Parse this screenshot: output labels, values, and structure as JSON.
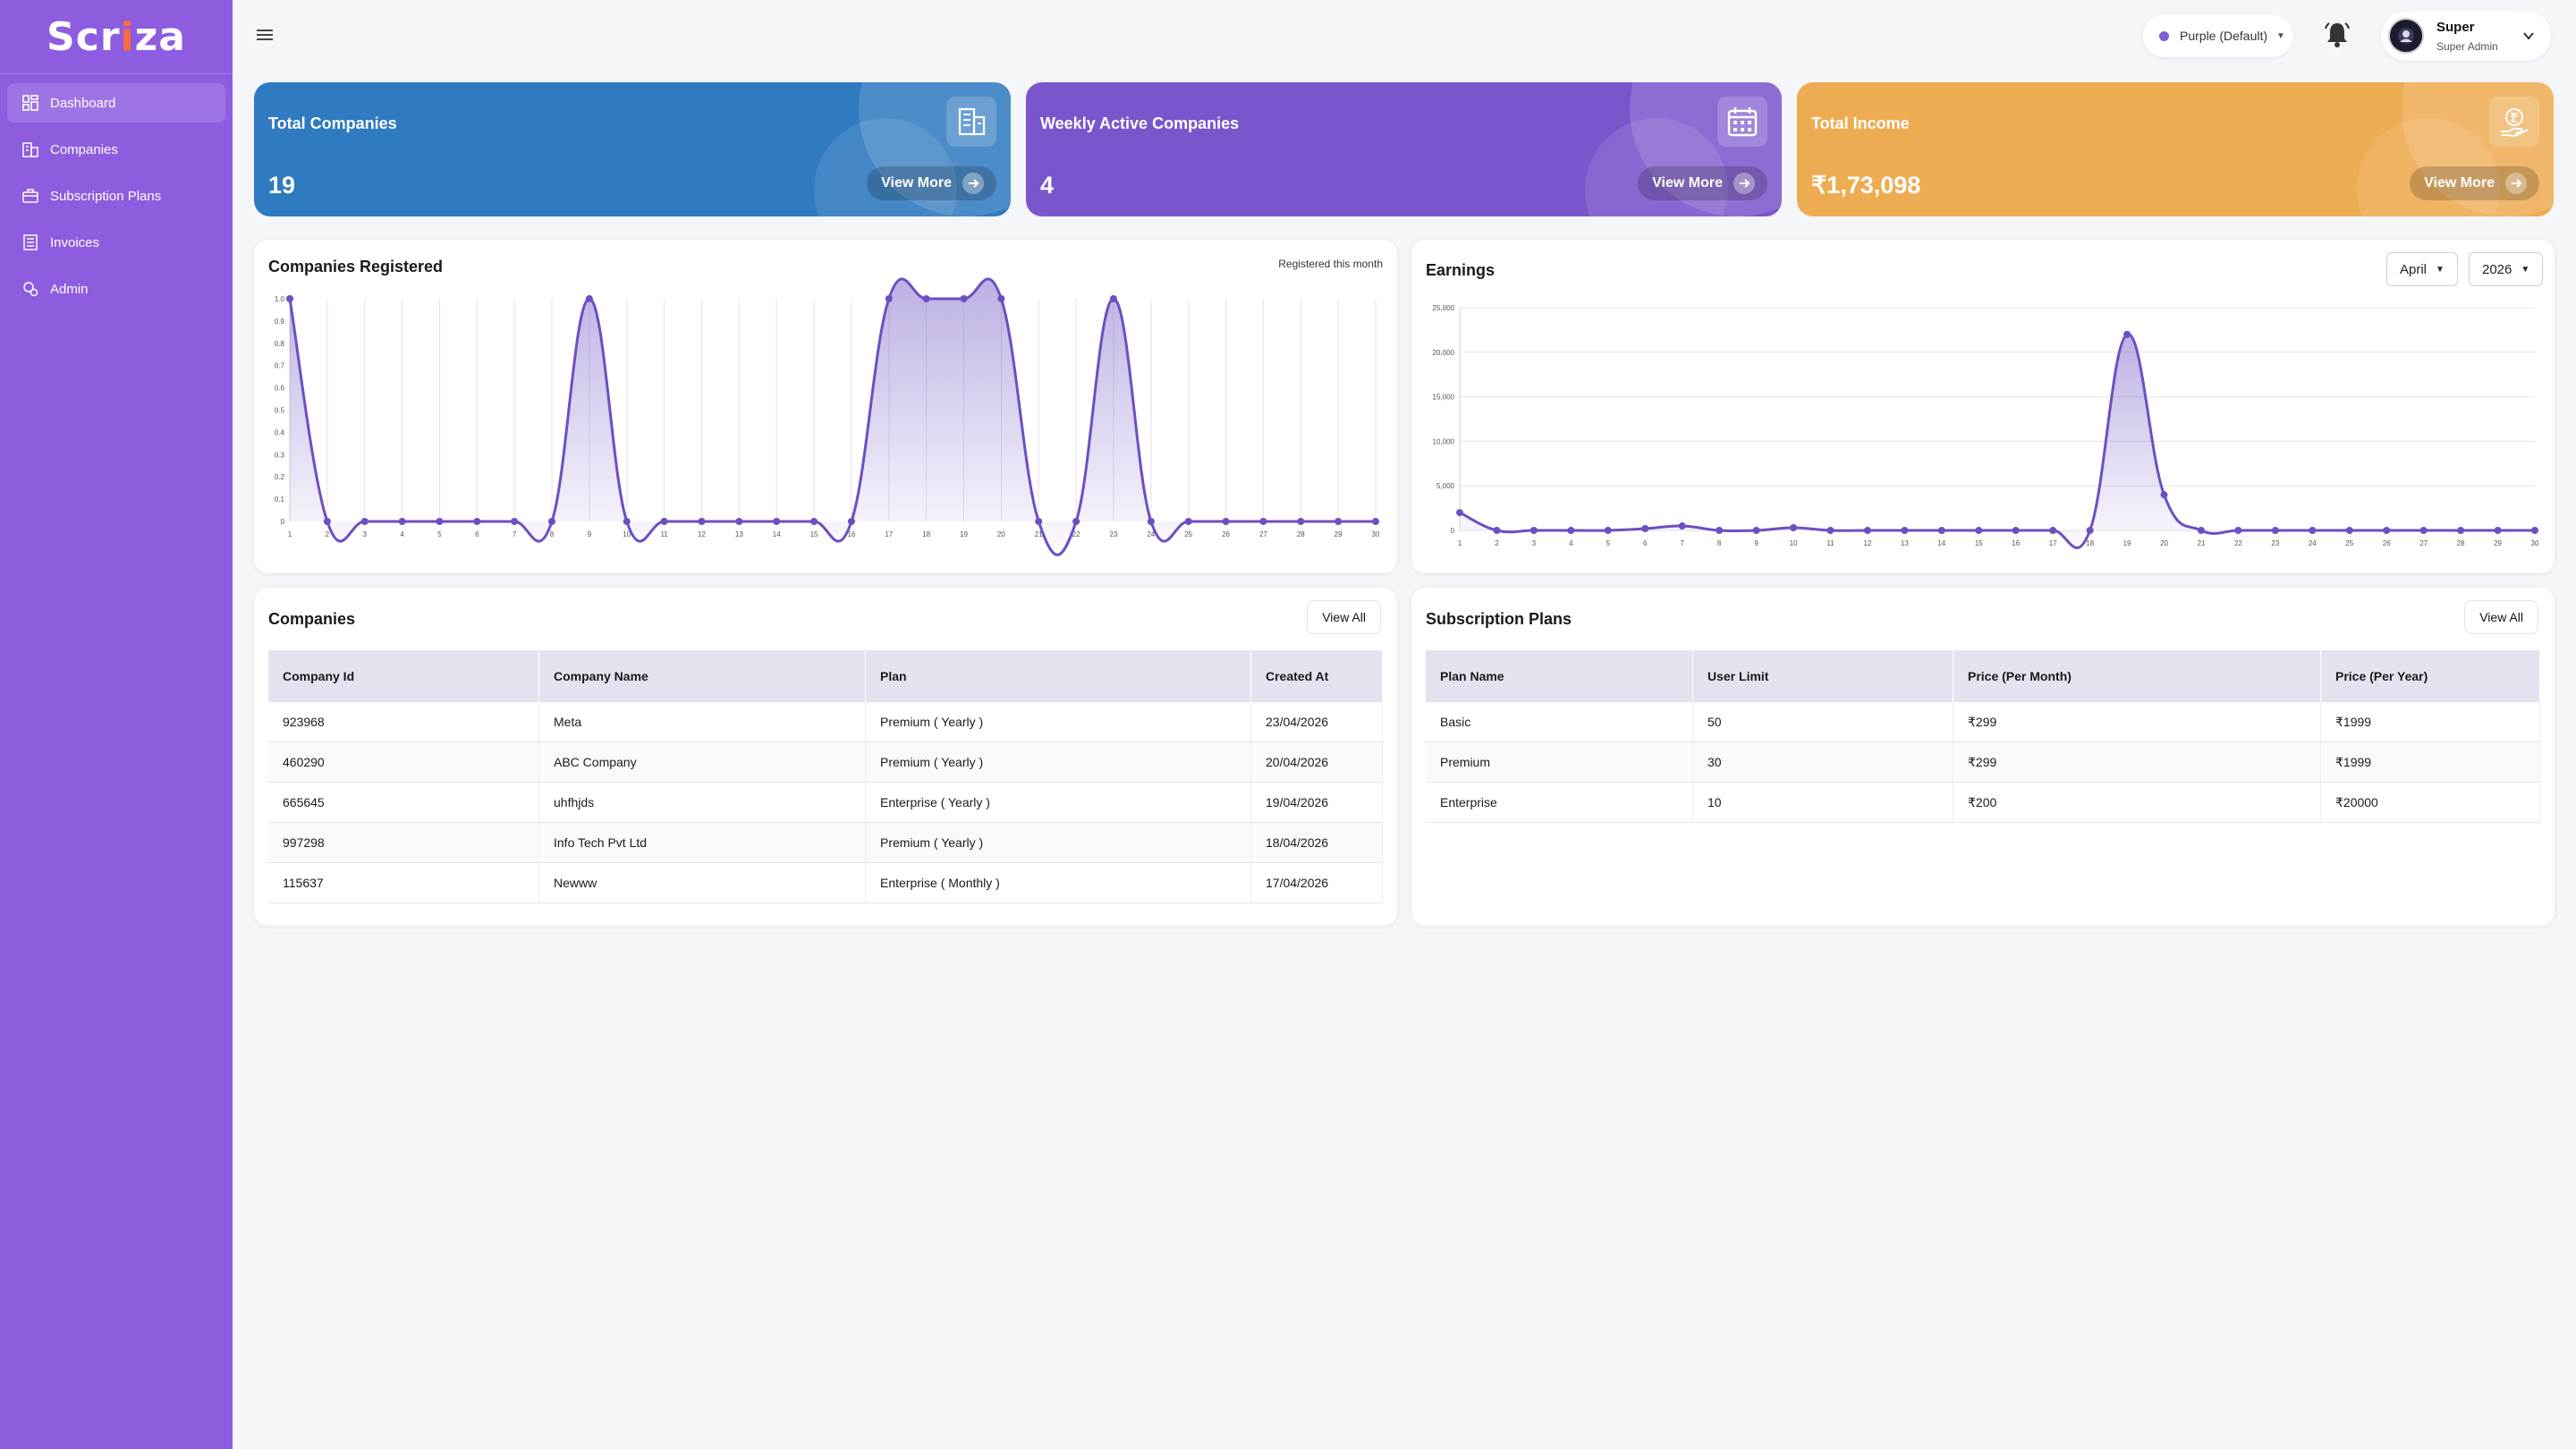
{
  "brand": {
    "name_pre": "Scr",
    "name_tick": "i",
    "name_post": "za"
  },
  "sidebar": {
    "items": [
      {
        "label": "Dashboard",
        "icon": "dashboard-icon",
        "active": true
      },
      {
        "label": "Companies",
        "icon": "building-icon",
        "active": false
      },
      {
        "label": "Subscription Plans",
        "icon": "subscription-icon",
        "active": false
      },
      {
        "label": "Invoices",
        "icon": "invoice-icon",
        "active": false
      },
      {
        "label": "Admin",
        "icon": "admin-icon",
        "active": false
      }
    ]
  },
  "header": {
    "theme_label": "Purple (Default)",
    "user_name": "Super",
    "user_role": "Super Admin"
  },
  "stats": [
    {
      "title": "Total Companies",
      "value": "19",
      "button": "View More",
      "color": "#2f7ac0",
      "icon": "building-icon"
    },
    {
      "title": "Weekly Active Companies",
      "value": "4",
      "button": "View More",
      "color": "#7a56cc",
      "icon": "calendar-icon"
    },
    {
      "title": "Total Income",
      "value": "₹1,73,098",
      "button": "View More",
      "color": "#eeac52",
      "icon": "money-icon"
    }
  ],
  "companies_chart": {
    "title": "Companies Registered",
    "note": "Registered this month"
  },
  "earnings_chart": {
    "title": "Earnings",
    "month": "April",
    "year": "2026"
  },
  "chart_data": [
    {
      "type": "area",
      "title": "Companies Registered",
      "x": [
        1,
        2,
        3,
        4,
        5,
        6,
        7,
        8,
        9,
        10,
        11,
        12,
        13,
        14,
        15,
        16,
        17,
        18,
        19,
        20,
        21,
        22,
        23,
        24,
        25,
        26,
        27,
        28,
        29,
        30
      ],
      "values": [
        1,
        0,
        0,
        0,
        0,
        0,
        0,
        0,
        1,
        0,
        0,
        0,
        0,
        0,
        0,
        0,
        1,
        1,
        1,
        1,
        0,
        0,
        1,
        0,
        0,
        0,
        0,
        0,
        0,
        0
      ],
      "ylim": [
        0,
        1.0
      ],
      "yticks": [
        "0",
        "0.1",
        "0.2",
        "0.3",
        "0.4",
        "0.5",
        "0.6",
        "0.7",
        "0.8",
        "0.9",
        "1.0"
      ],
      "grid": "vertical",
      "color": "#6d4fc2"
    },
    {
      "type": "area",
      "title": "Earnings",
      "x": [
        1,
        2,
        3,
        4,
        5,
        6,
        7,
        8,
        9,
        10,
        11,
        12,
        13,
        14,
        15,
        16,
        17,
        18,
        19,
        20,
        21,
        22,
        23,
        24,
        25,
        26,
        27,
        28,
        29,
        30
      ],
      "values": [
        2000,
        0,
        0,
        0,
        0,
        200,
        500,
        0,
        0,
        300,
        0,
        0,
        0,
        0,
        0,
        0,
        0,
        0,
        22000,
        4000,
        0,
        0,
        0,
        0,
        0,
        0,
        0,
        0,
        0,
        0
      ],
      "ylim": [
        0,
        25000
      ],
      "yticks": [
        "0",
        "5,000",
        "10,000",
        "15,000",
        "20,000",
        "25,000"
      ],
      "grid": "horizontal",
      "color": "#6d4fc2"
    }
  ],
  "companies_table": {
    "title": "Companies",
    "view_all": "View All",
    "columns": [
      "Company Id",
      "Company Name",
      "Plan",
      "Created At"
    ],
    "rows": [
      [
        "923968",
        "Meta",
        "Premium ( Yearly )",
        "23/04/2026"
      ],
      [
        "460290",
        "ABC Company",
        "Premium ( Yearly )",
        "20/04/2026"
      ],
      [
        "665645",
        "uhfhjds",
        "Enterprise ( Yearly )",
        "19/04/2026"
      ],
      [
        "997298",
        "Info Tech Pvt Ltd",
        "Premium ( Yearly )",
        "18/04/2026"
      ],
      [
        "115637",
        "Newww",
        "Enterprise ( Monthly )",
        "17/04/2026"
      ]
    ]
  },
  "plans_table": {
    "title": "Subscription Plans",
    "view_all": "View All",
    "columns": [
      "Plan Name",
      "User Limit",
      "Price (Per Month)",
      "Price (Per Year)"
    ],
    "rows": [
      [
        "Basic",
        "50",
        "₹299",
        "₹1999"
      ],
      [
        "Premium",
        "30",
        "₹299",
        "₹1999"
      ],
      [
        "Enterprise",
        "10",
        "₹200",
        "₹20000"
      ]
    ]
  }
}
